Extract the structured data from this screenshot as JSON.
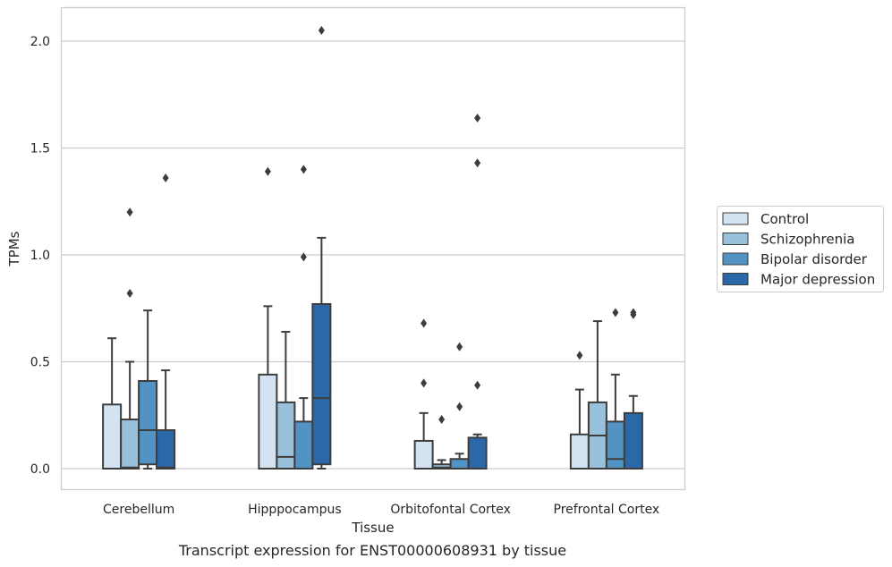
{
  "caption": "Transcript expression for ENST00000608931 by tissue",
  "chart_data": {
    "type": "boxplot",
    "xlabel": "Tissue",
    "ylabel": "TPMs",
    "ylim": [
      -0.1,
      2.15
    ],
    "yticks": [
      0.0,
      0.5,
      1.0,
      1.5,
      2.0
    ],
    "ytick_labels": [
      "0.0",
      "0.5",
      "1.0",
      "1.5",
      "2.0"
    ],
    "grid": "horizontal",
    "legend_position": "right",
    "categories": [
      "Cerebellum",
      "Hipppocampus",
      "Orbitofontal Cortex",
      "Prefrontal Cortex"
    ],
    "series": [
      {
        "name": "Control",
        "color": "#d3e3f1",
        "boxes": [
          {
            "q1": 0.0,
            "median": 0.0,
            "q3": 0.3,
            "whisker_low": 0.0,
            "whisker_high": 0.61,
            "fliers": []
          },
          {
            "q1": 0.0,
            "median": 0.0,
            "q3": 0.44,
            "whisker_low": 0.0,
            "whisker_high": 0.76,
            "fliers": [
              1.39
            ]
          },
          {
            "q1": 0.0,
            "median": 0.0,
            "q3": 0.13,
            "whisker_low": 0.0,
            "whisker_high": 0.26,
            "fliers": [
              0.4,
              0.68
            ]
          },
          {
            "q1": 0.0,
            "median": 0.0,
            "q3": 0.16,
            "whisker_low": 0.0,
            "whisker_high": 0.37,
            "fliers": [
              0.53
            ]
          }
        ]
      },
      {
        "name": "Schizophrenia",
        "color": "#9ac1db",
        "boxes": [
          {
            "q1": 0.0,
            "median": 0.005,
            "q3": 0.23,
            "whisker_low": 0.0,
            "whisker_high": 0.5,
            "fliers": [
              0.82,
              1.2
            ]
          },
          {
            "q1": 0.0,
            "median": 0.055,
            "q3": 0.31,
            "whisker_low": 0.0,
            "whisker_high": 0.64,
            "fliers": []
          },
          {
            "q1": 0.0,
            "median": 0.005,
            "q3": 0.02,
            "whisker_low": 0.0,
            "whisker_high": 0.04,
            "fliers": [
              0.23
            ]
          },
          {
            "q1": 0.0,
            "median": 0.155,
            "q3": 0.31,
            "whisker_low": 0.0,
            "whisker_high": 0.69,
            "fliers": []
          }
        ]
      },
      {
        "name": "Bipolar disorder",
        "color": "#5293c3",
        "boxes": [
          {
            "q1": 0.02,
            "median": 0.18,
            "q3": 0.41,
            "whisker_low": 0.0,
            "whisker_high": 0.74,
            "fliers": []
          },
          {
            "q1": 0.0,
            "median": 0.0,
            "q3": 0.22,
            "whisker_low": 0.0,
            "whisker_high": 0.33,
            "fliers": [
              0.99,
              1.4
            ]
          },
          {
            "q1": 0.0,
            "median": 0.0,
            "q3": 0.045,
            "whisker_low": 0.0,
            "whisker_high": 0.07,
            "fliers": [
              0.29,
              0.57
            ]
          },
          {
            "q1": 0.0,
            "median": 0.045,
            "q3": 0.22,
            "whisker_low": 0.0,
            "whisker_high": 0.44,
            "fliers": [
              0.73
            ]
          }
        ]
      },
      {
        "name": "Major depression",
        "color": "#2a68a9",
        "boxes": [
          {
            "q1": 0.0,
            "median": 0.005,
            "q3": 0.18,
            "whisker_low": 0.0,
            "whisker_high": 0.46,
            "fliers": [
              1.36
            ]
          },
          {
            "q1": 0.02,
            "median": 0.33,
            "q3": 0.77,
            "whisker_low": 0.0,
            "whisker_high": 1.08,
            "fliers": [
              2.05
            ]
          },
          {
            "q1": 0.0,
            "median": 0.0,
            "q3": 0.145,
            "whisker_low": 0.0,
            "whisker_high": 0.16,
            "fliers": [
              0.39,
              1.43,
              1.64
            ]
          },
          {
            "q1": 0.0,
            "median": 0.0,
            "q3": 0.26,
            "whisker_low": 0.0,
            "whisker_high": 0.34,
            "fliers": [
              0.72,
              0.73
            ]
          }
        ]
      }
    ]
  }
}
